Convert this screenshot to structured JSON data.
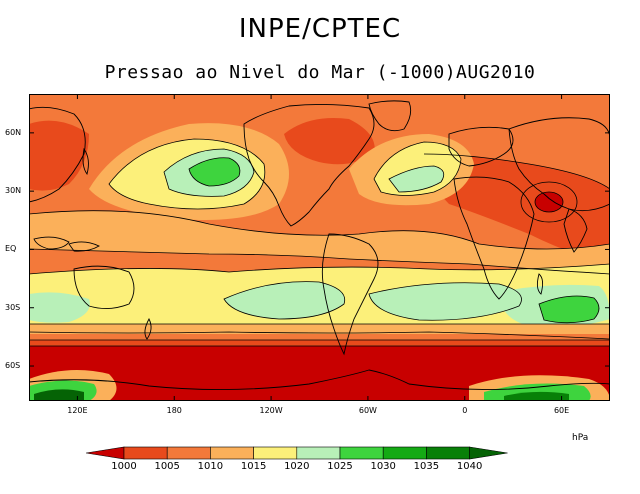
{
  "header": {
    "title": "INPE/CPTEC",
    "subtitle": "Pressao ao Nivel do Mar (-1000)AUG2010"
  },
  "map": {
    "lat_labels": [
      "60N",
      "30N",
      "EQ",
      "30S",
      "60S"
    ],
    "lon_labels": [
      "120E",
      "180",
      "120W",
      "60W",
      "0",
      "60E"
    ],
    "lat_values": [
      60,
      30,
      0,
      -30,
      -60
    ],
    "lon_values": [
      120,
      180,
      240,
      300,
      360,
      420
    ],
    "lon_range": [
      90,
      450
    ],
    "lat_range": [
      -78,
      80
    ]
  },
  "legend": {
    "units": "hPa",
    "labels": [
      "1000",
      "1005",
      "1010",
      "1015",
      "1020",
      "1025",
      "1030",
      "1035",
      "1040"
    ],
    "colors": [
      "#c80000",
      "#e84a1c",
      "#f3793a",
      "#fbb05a",
      "#fcf07a",
      "#b8f0b8",
      "#3ed43e",
      "#14aa14",
      "#088008",
      "#056305"
    ]
  },
  "colors": {
    "lt1000": "#c80000",
    "c1000": "#e84a1c",
    "c1005": "#f3793a",
    "c1010": "#fbb05a",
    "c1015": "#fcf07a",
    "c1020": "#b8f0b8",
    "c1025": "#3ed43e",
    "c1030": "#14aa14",
    "c1035": "#088008",
    "c1040": "#056305"
  }
}
